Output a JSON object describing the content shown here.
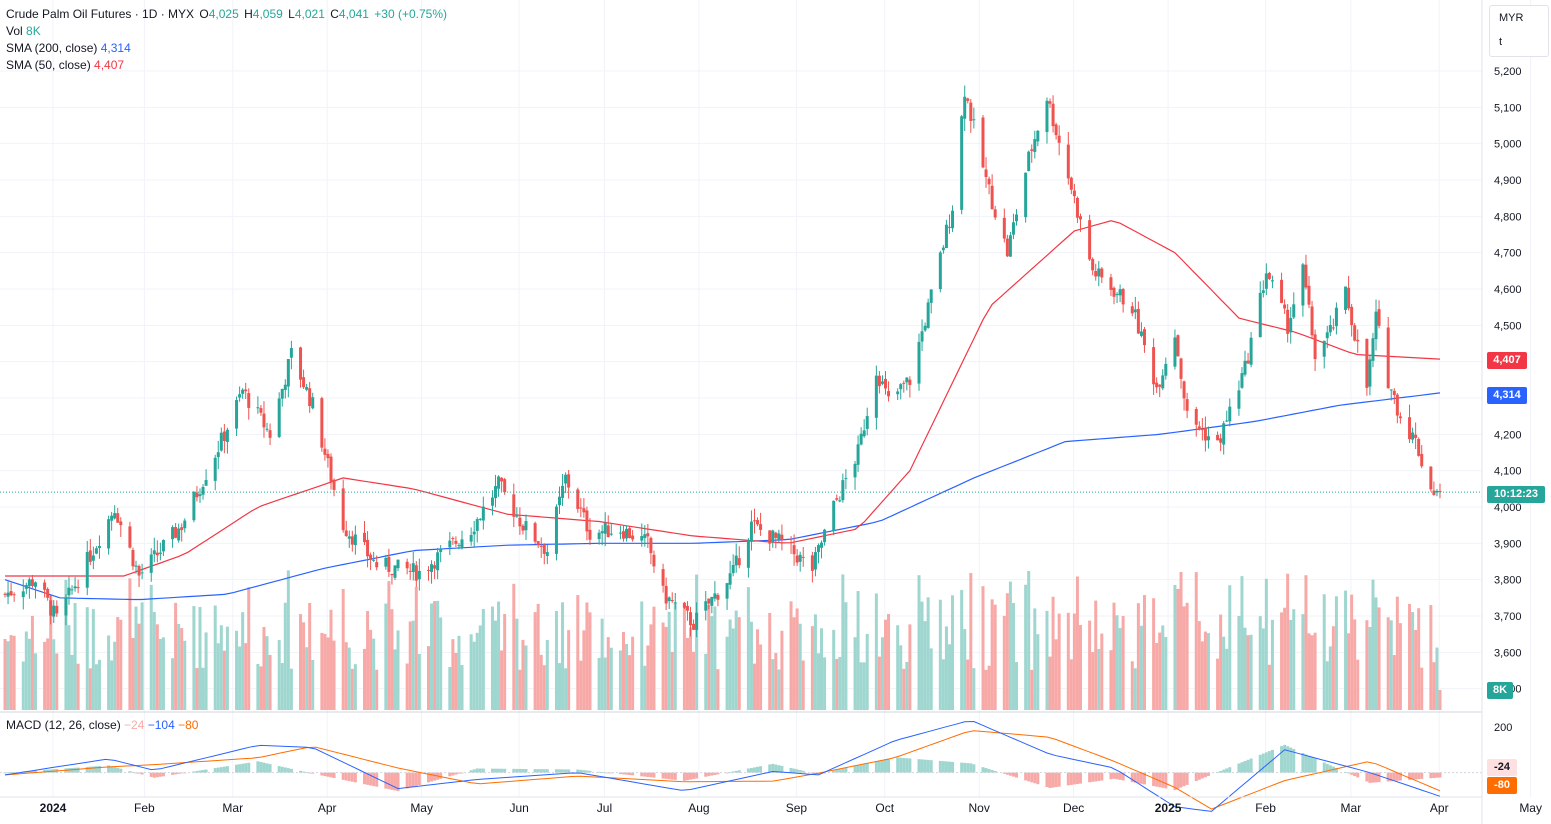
{
  "header": {
    "symbol_title": "Crude Palm Oil Futures · 1D · MYX",
    "o_label": "O",
    "o_value": "4,025",
    "h_label": "H",
    "h_value": "4,059",
    "l_label": "L",
    "l_value": "4,021",
    "c_label": "C",
    "c_value": "4,041",
    "change": "+30 (+0.75%)"
  },
  "indicators": {
    "vol_label": "Vol",
    "vol_value": "8K",
    "sma200_label": "SMA (200, close)",
    "sma200_value": "4,314",
    "sma50_label": "SMA (50, close)",
    "sma50_value": "4,407",
    "macd_label": "MACD (12, 26, close)",
    "macd_hist": "−24",
    "macd_line": "−104",
    "macd_signal": "−80"
  },
  "price_scale": {
    "currency": "MYR",
    "unit": "t",
    "ticks": [
      "5,200",
      "5,100",
      "5,000",
      "4,900",
      "4,800",
      "4,700",
      "4,600",
      "4,500",
      "4,400",
      "4,300",
      "4,200",
      "4,100",
      "4,000",
      "3,900",
      "3,800",
      "3,700",
      "3,600",
      "3,500"
    ],
    "badge_sma50": "4,407",
    "badge_sma200": "4,314",
    "badge_countdown": "10:12:23",
    "badge_volume": "8K"
  },
  "macd_scale": {
    "ticks": [
      "200"
    ],
    "badge_hist": "-24",
    "badge_signal": "-80"
  },
  "time_axis": [
    "2024",
    "Feb",
    "Mar",
    "Apr",
    "May",
    "Jun",
    "Jul",
    "Aug",
    "Sep",
    "Oct",
    "Nov",
    "Dec",
    "2025",
    "Feb",
    "Mar",
    "Apr",
    "May"
  ],
  "colors": {
    "up": "#26a69a",
    "down": "#ef5350",
    "sma50": "#f23645",
    "sma200": "#2962ff",
    "macd_line": "#2962ff",
    "macd_signal": "#ff6d00",
    "vol_up": "#9fd6cf",
    "vol_down": "#f7a9a7"
  },
  "chart_data": {
    "type": "candlestick",
    "title": "Crude Palm Oil Futures · 1D · MYX",
    "x_range": [
      "2024-01-02",
      "2025-04-17"
    ],
    "y_range": [
      3500,
      5250
    ],
    "y_scale": "linear",
    "grid": true,
    "last_close": 4041,
    "waypoints": [
      [
        "2024-01-02",
        3760
      ],
      [
        "2024-01-12",
        3800
      ],
      [
        "2024-01-19",
        3690
      ],
      [
        "2024-02-01",
        3900
      ],
      [
        "2024-02-07",
        4000
      ],
      [
        "2024-02-15",
        3810
      ],
      [
        "2024-02-29",
        3950
      ],
      [
        "2024-03-14",
        4200
      ],
      [
        "2024-03-20",
        4320
      ],
      [
        "2024-03-29",
        4200
      ],
      [
        "2024-04-05",
        4420
      ],
      [
        "2024-04-12",
        4280
      ],
      [
        "2024-04-22",
        3950
      ],
      [
        "2024-05-03",
        3840
      ],
      [
        "2024-05-17",
        3820
      ],
      [
        "2024-06-03",
        3940
      ],
      [
        "2024-06-12",
        4060
      ],
      [
        "2024-06-20",
        3950
      ],
      [
        "2024-06-28",
        3880
      ],
      [
        "2024-07-04",
        4080
      ],
      [
        "2024-07-12",
        3930
      ],
      [
        "2024-07-22",
        3940
      ],
      [
        "2024-07-31",
        3900
      ],
      [
        "2024-08-05",
        3760
      ],
      [
        "2024-08-15",
        3680
      ],
      [
        "2024-08-28",
        3820
      ],
      [
        "2024-09-03",
        3950
      ],
      [
        "2024-09-13",
        3900
      ],
      [
        "2024-09-23",
        3830
      ],
      [
        "2024-09-30",
        4000
      ],
      [
        "2024-10-08",
        4150
      ],
      [
        "2024-10-14",
        4380
      ],
      [
        "2024-10-18",
        4290
      ],
      [
        "2024-10-25",
        4350
      ],
      [
        "2024-11-01",
        4580
      ],
      [
        "2024-11-08",
        4830
      ],
      [
        "2024-11-12",
        5150
      ],
      [
        "2024-11-19",
        4900
      ],
      [
        "2024-11-26",
        4700
      ],
      [
        "2024-12-03",
        4960
      ],
      [
        "2024-12-09",
        5130
      ],
      [
        "2024-12-17",
        4880
      ],
      [
        "2024-12-24",
        4650
      ],
      [
        "2025-01-06",
        4550
      ],
      [
        "2025-01-14",
        4330
      ],
      [
        "2025-01-20",
        4480
      ],
      [
        "2025-01-24",
        4250
      ],
      [
        "2025-02-03",
        4170
      ],
      [
        "2025-02-12",
        4380
      ],
      [
        "2025-02-19",
        4650
      ],
      [
        "2025-02-26",
        4500
      ],
      [
        "2025-03-03",
        4650
      ],
      [
        "2025-03-07",
        4420
      ],
      [
        "2025-03-12",
        4480
      ],
      [
        "2025-03-17",
        4590
      ],
      [
        "2025-03-24",
        4330
      ],
      [
        "2025-03-27",
        4520
      ],
      [
        "2025-03-31",
        4350
      ],
      [
        "2025-04-04",
        4250
      ],
      [
        "2025-04-09",
        4180
      ],
      [
        "2025-04-14",
        4050
      ],
      [
        "2025-04-17",
        4041
      ]
    ],
    "sma50_waypoints": [
      [
        "2024-01-02",
        3810
      ],
      [
        "2024-02-10",
        3810
      ],
      [
        "2024-03-01",
        3870
      ],
      [
        "2024-03-25",
        4000
      ],
      [
        "2024-04-22",
        4080
      ],
      [
        "2024-05-15",
        4050
      ],
      [
        "2024-06-15",
        3980
      ],
      [
        "2024-07-15",
        3960
      ],
      [
        "2024-08-15",
        3920
      ],
      [
        "2024-09-15",
        3900
      ],
      [
        "2024-10-08",
        3940
      ],
      [
        "2024-10-25",
        4100
      ],
      [
        "2024-11-20",
        4550
      ],
      [
        "2024-12-18",
        4760
      ],
      [
        "2024-12-31",
        4790
      ],
      [
        "2025-01-20",
        4700
      ],
      [
        "2025-02-10",
        4520
      ],
      [
        "2025-03-01",
        4480
      ],
      [
        "2025-03-20",
        4420
      ],
      [
        "2025-04-17",
        4407
      ]
    ],
    "sma200_waypoints": [
      [
        "2024-01-02",
        3800
      ],
      [
        "2024-01-20",
        3750
      ],
      [
        "2024-02-15",
        3745
      ],
      [
        "2024-03-15",
        3760
      ],
      [
        "2024-04-15",
        3830
      ],
      [
        "2024-05-15",
        3880
      ],
      [
        "2024-06-15",
        3895
      ],
      [
        "2024-07-15",
        3900
      ],
      [
        "2024-08-15",
        3900
      ],
      [
        "2024-09-15",
        3910
      ],
      [
        "2024-10-15",
        3960
      ],
      [
        "2024-11-15",
        4080
      ],
      [
        "2024-12-15",
        4180
      ],
      [
        "2025-01-15",
        4200
      ],
      [
        "2025-02-15",
        4235
      ],
      [
        "2025-03-15",
        4280
      ],
      [
        "2025-04-17",
        4314
      ]
    ],
    "macd_waypoints": [
      [
        "2024-01-02",
        -10
      ],
      [
        "2024-02-05",
        60
      ],
      [
        "2024-02-20",
        10
      ],
      [
        "2024-03-25",
        120
      ],
      [
        "2024-04-12",
        110
      ],
      [
        "2024-05-10",
        -70
      ],
      [
        "2024-06-05",
        -30
      ],
      [
        "2024-07-08",
        0
      ],
      [
        "2024-08-12",
        -80
      ],
      [
        "2024-09-10",
        5
      ],
      [
        "2024-09-25",
        -10
      ],
      [
        "2024-10-20",
        140
      ],
      [
        "2024-11-14",
        230
      ],
      [
        "2024-12-10",
        80
      ],
      [
        "2024-12-31",
        20
      ],
      [
        "2025-01-20",
        -150
      ],
      [
        "2025-02-01",
        -170
      ],
      [
        "2025-02-25",
        100
      ],
      [
        "2025-03-25",
        0
      ],
      [
        "2025-04-17",
        -104
      ]
    ],
    "macd_signal_last": -80,
    "macd_hist_last": -24,
    "volume_last": "8K"
  }
}
